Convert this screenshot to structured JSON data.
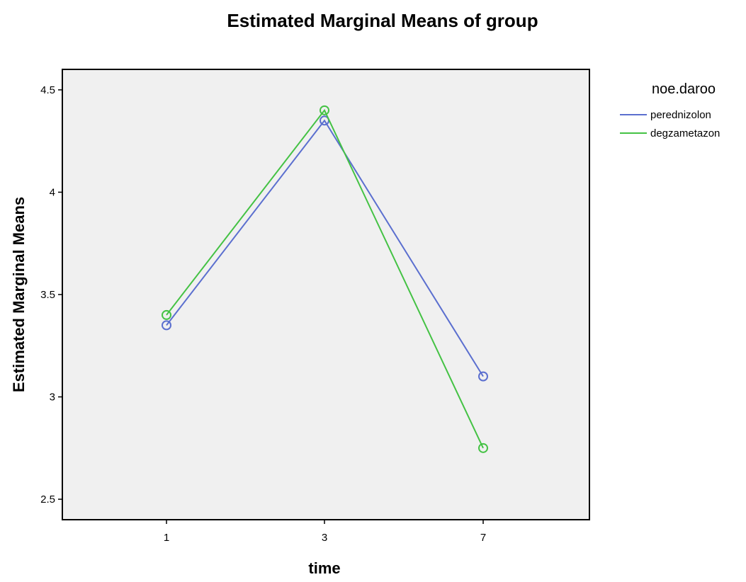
{
  "chart_data": {
    "type": "line",
    "title": "Estimated Marginal Means of group",
    "xlabel": "time",
    "ylabel": "Estimated Marginal Means",
    "categories": [
      "1",
      "3",
      "7"
    ],
    "ylim": [
      2.4,
      4.6
    ],
    "yticks": [
      "2.5",
      "3",
      "3.5",
      "4",
      "4.5"
    ],
    "grid": false,
    "legend": {
      "title": "noe.daroo",
      "placement": "right"
    },
    "series": [
      {
        "name": "perednizolon",
        "values": [
          3.35,
          4.35,
          3.1
        ],
        "color": "#5b6fcf"
      },
      {
        "name": "degzametazon",
        "values": [
          3.4,
          4.4,
          2.75
        ],
        "color": "#44c244"
      }
    ],
    "plot_background": "#f0f0f0",
    "frame_color": "#000000"
  }
}
